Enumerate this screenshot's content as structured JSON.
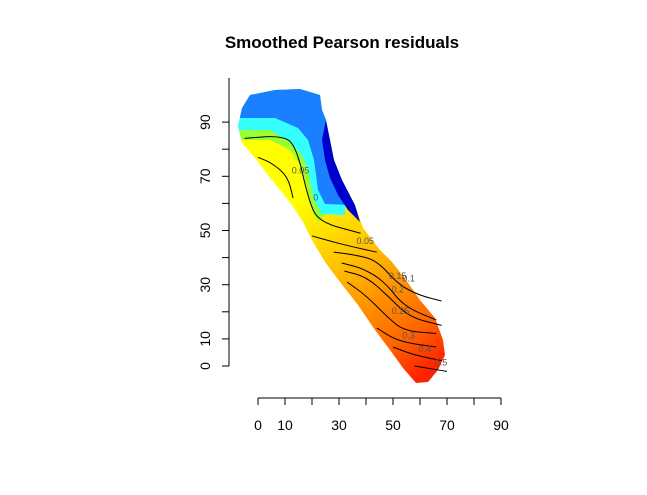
{
  "chart_data": {
    "type": "heatmap",
    "title": "Smoothed Pearson residuals",
    "xlabel": "",
    "ylabel": "",
    "xlim": [
      0,
      90
    ],
    "ylim": [
      0,
      100
    ],
    "x_ticks": [
      0,
      10,
      20,
      30,
      40,
      50,
      60,
      70,
      80,
      90
    ],
    "x_tick_labels": [
      "0",
      "10",
      "",
      "30",
      "",
      "50",
      "",
      "70",
      "",
      "90"
    ],
    "y_ticks": [
      0,
      10,
      20,
      30,
      40,
      50,
      60,
      70,
      80,
      90
    ],
    "y_tick_labels": [
      "0",
      "10",
      "",
      "30",
      "",
      "50",
      "",
      "70",
      "",
      "90"
    ],
    "grid": false,
    "legend": "none",
    "color_scale": [
      "#0000cc",
      "#1a80ff",
      "#33ffff",
      "#99ff33",
      "#ffff00",
      "#ffcc00",
      "#ff9900",
      "#ff6600",
      "#ff3300"
    ],
    "contour_levels": [
      "0",
      "0.05",
      "0.05",
      "0.1",
      "0.15",
      "0.2",
      "0.25",
      "0.3",
      "0.4",
      "0.5"
    ],
    "contours": [
      {
        "label": "0",
        "points": [
          [
            -5,
            84
          ],
          [
            8,
            85
          ],
          [
            14,
            82
          ],
          [
            19,
            60
          ],
          [
            23,
            53
          ],
          [
            38,
            49
          ]
        ]
      },
      {
        "label": "0.05",
        "points": [
          [
            0,
            77
          ],
          [
            5,
            75
          ],
          [
            11,
            70
          ],
          [
            13,
            62
          ]
        ]
      },
      {
        "label": "0.05",
        "points": [
          [
            20,
            48
          ],
          [
            27,
            46
          ],
          [
            35,
            44
          ],
          [
            44,
            42
          ]
        ]
      },
      {
        "label": "0.1",
        "points": [
          [
            28,
            42
          ],
          [
            36,
            41
          ],
          [
            44,
            39
          ],
          [
            52,
            30
          ],
          [
            60,
            26
          ],
          [
            68,
            24
          ]
        ]
      },
      {
        "label": "0.15",
        "points": [
          [
            31,
            38
          ],
          [
            39,
            36
          ],
          [
            47,
            31
          ],
          [
            54,
            22
          ],
          [
            66,
            17
          ]
        ]
      },
      {
        "label": "0.2",
        "points": [
          [
            32,
            35
          ],
          [
            40,
            33
          ],
          [
            48,
            26
          ],
          [
            56,
            18
          ],
          [
            68,
            15
          ]
        ]
      },
      {
        "label": "0.25",
        "points": [
          [
            33,
            31
          ],
          [
            40,
            26
          ],
          [
            48,
            18
          ],
          [
            54,
            13
          ],
          [
            66,
            12
          ]
        ]
      },
      {
        "label": "0.3",
        "points": [
          [
            44,
            14
          ],
          [
            52,
            9
          ],
          [
            66,
            7
          ]
        ]
      },
      {
        "label": "0.4",
        "points": [
          [
            50,
            7
          ],
          [
            58,
            4
          ],
          [
            68,
            2
          ]
        ]
      },
      {
        "label": "0.5",
        "points": [
          [
            58,
            0
          ],
          [
            64,
            -1
          ],
          [
            70,
            -2
          ]
        ]
      }
    ]
  }
}
